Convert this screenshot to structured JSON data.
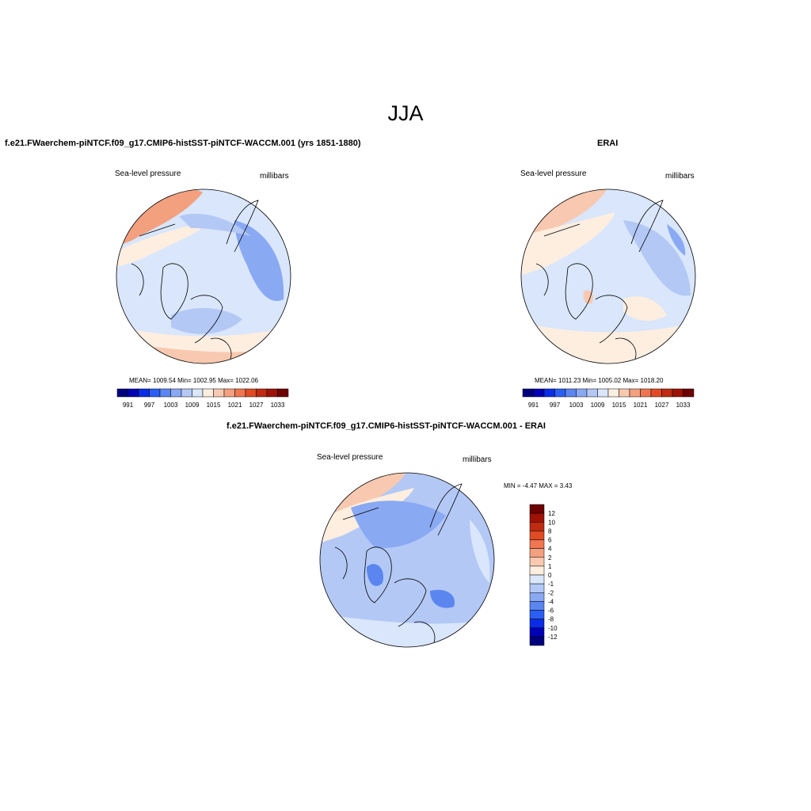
{
  "title": "JJA",
  "colors": {
    "abs_scale": [
      "#00007f",
      "#0000b5",
      "#0a2ce5",
      "#2a5ef5",
      "#5b86f0",
      "#8aa9f3",
      "#b3c8f5",
      "#d9e6fb",
      "#fdeee0",
      "#f8c9b0",
      "#f3a07f",
      "#ee7651",
      "#e04b24",
      "#c02a10",
      "#9d1205",
      "#6e0000"
    ],
    "diff_scale": [
      "#6e0000",
      "#9d1205",
      "#c02a10",
      "#e04b24",
      "#ee7651",
      "#f3a07f",
      "#f8c9b0",
      "#fdeee0",
      "#d9e6fb",
      "#b3c8f5",
      "#8aa9f3",
      "#5b86f0",
      "#2a5ef5",
      "#0a2ce5",
      "#0000b5",
      "#00007f"
    ]
  },
  "panels": [
    {
      "title": "f.e21.FWaerchem-piNTCF.f09_g17.CMIP6-histSST-piNTCF-WACCM.001 (yrs 1851-1880)",
      "variable": "Sea-level pressure",
      "units": "millibars",
      "stats": "MEAN= 1009.54  Min= 1002.95  Max= 1022.06",
      "colorbar_labels": [
        "991",
        "997",
        "1003",
        "1009",
        "1015",
        "1021",
        "1027",
        "1033"
      ]
    },
    {
      "title": "ERAI",
      "variable": "Sea-level pressure",
      "units": "millibars",
      "stats": "MEAN= 1011.23  Min= 1005.02  Max= 1018.20",
      "colorbar_labels": [
        "991",
        "997",
        "1003",
        "1009",
        "1015",
        "1021",
        "1027",
        "1033"
      ]
    },
    {
      "title": "f.e21.FWaerchem-piNTCF.f09_g17.CMIP6-histSST-piNTCF-WACCM.001 - ERAI",
      "variable": "Sea-level pressure",
      "units": "millibars",
      "stats": "MIN =  -4.47 MAX =   3.43",
      "colorbar_labels": [
        "12",
        "10",
        "8",
        "6",
        "4",
        "2",
        "1",
        "0",
        "-1",
        "-2",
        "-4",
        "-6",
        "-8",
        "-10",
        "-12"
      ]
    }
  ]
}
